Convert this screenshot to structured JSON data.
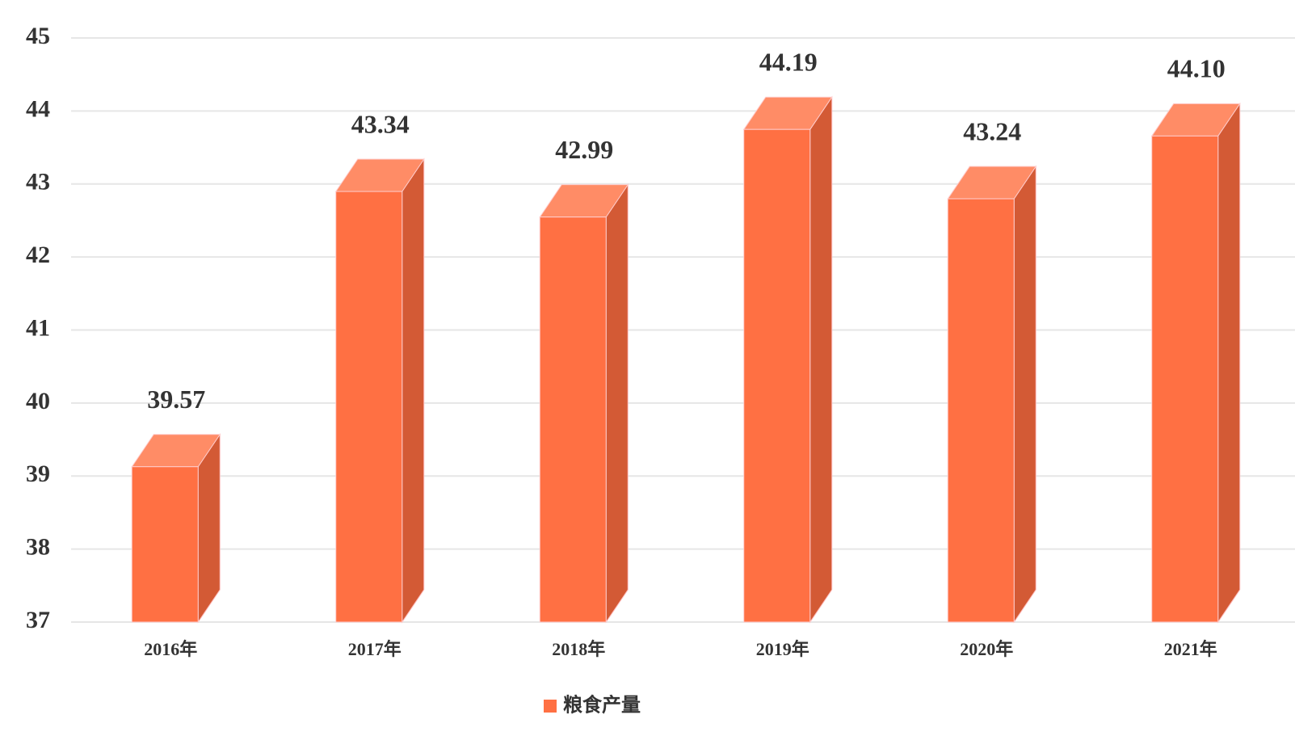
{
  "chart_data": {
    "type": "bar3d",
    "categories": [
      "2016年",
      "2017年",
      "2018年",
      "2019年",
      "2020年",
      "2021年"
    ],
    "series": [
      {
        "name": "粮食产量",
        "color": "#ff7043",
        "values": [
          39.57,
          43.34,
          42.99,
          44.19,
          43.24,
          44.1
        ],
        "value_labels": [
          "39.57",
          "43.34",
          "42.99",
          "44.19",
          "43.24",
          "44.10"
        ]
      }
    ],
    "ylim": [
      37,
      45
    ],
    "yticks": [
      37,
      38,
      39,
      40,
      41,
      42,
      43,
      44,
      45
    ],
    "grid": true
  }
}
